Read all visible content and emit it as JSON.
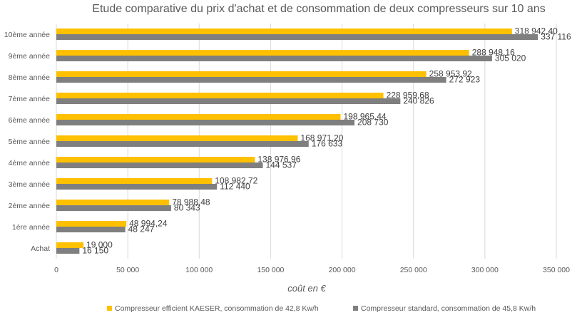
{
  "chart_data": {
    "type": "bar",
    "orientation": "horizontal",
    "title": "Etude comparative du prix d'achat et de consommation de deux compresseurs sur 10 ans",
    "xlabel": "coût en €",
    "ylabel": "",
    "xlim": [
      0,
      350000
    ],
    "x_ticks": [
      0,
      50000,
      100000,
      150000,
      200000,
      250000,
      300000,
      350000
    ],
    "x_tick_labels": [
      "0",
      "50 000",
      "100 000",
      "150 000",
      "200 000",
      "250 000",
      "300 000",
      "350 000"
    ],
    "grid": true,
    "legend_position": "bottom",
    "categories": [
      "Achat",
      "1ère année",
      "2ème année",
      "3ème année",
      "4ème année",
      "5ème année",
      "6ème année",
      "7ème année",
      "8ème année",
      "9ème année",
      "10ème année"
    ],
    "series": [
      {
        "name": "Compresseur efficient KAESER, consommation de 42,8 Kw/h",
        "color": "#FFC000",
        "values": [
          19000,
          48994.24,
          78988.48,
          108982.72,
          138976.96,
          168971.2,
          198965.44,
          228959.68,
          258953.92,
          288948.16,
          318942.4
        ],
        "labels": [
          "19 000",
          "48 994,24",
          "78 988,48",
          "108 982,72",
          "138 976,96",
          "168 971,20",
          "198 965,44",
          "228 959,68",
          "258 953,92",
          "288 948,16",
          "318 942,40"
        ]
      },
      {
        "name": "Compresseur standard, consommation de 45,8 Kw/h",
        "color": "#7F7F7F",
        "values": [
          16150,
          48247,
          80343,
          112440,
          144537,
          176633,
          208730,
          240826,
          272923,
          305020,
          337116
        ],
        "labels": [
          "16 150",
          "48 247",
          "80 343",
          "112 440",
          "144 537",
          "176 633",
          "208 730",
          "240 826",
          "272 923",
          "305 020",
          "337 116"
        ]
      }
    ]
  }
}
